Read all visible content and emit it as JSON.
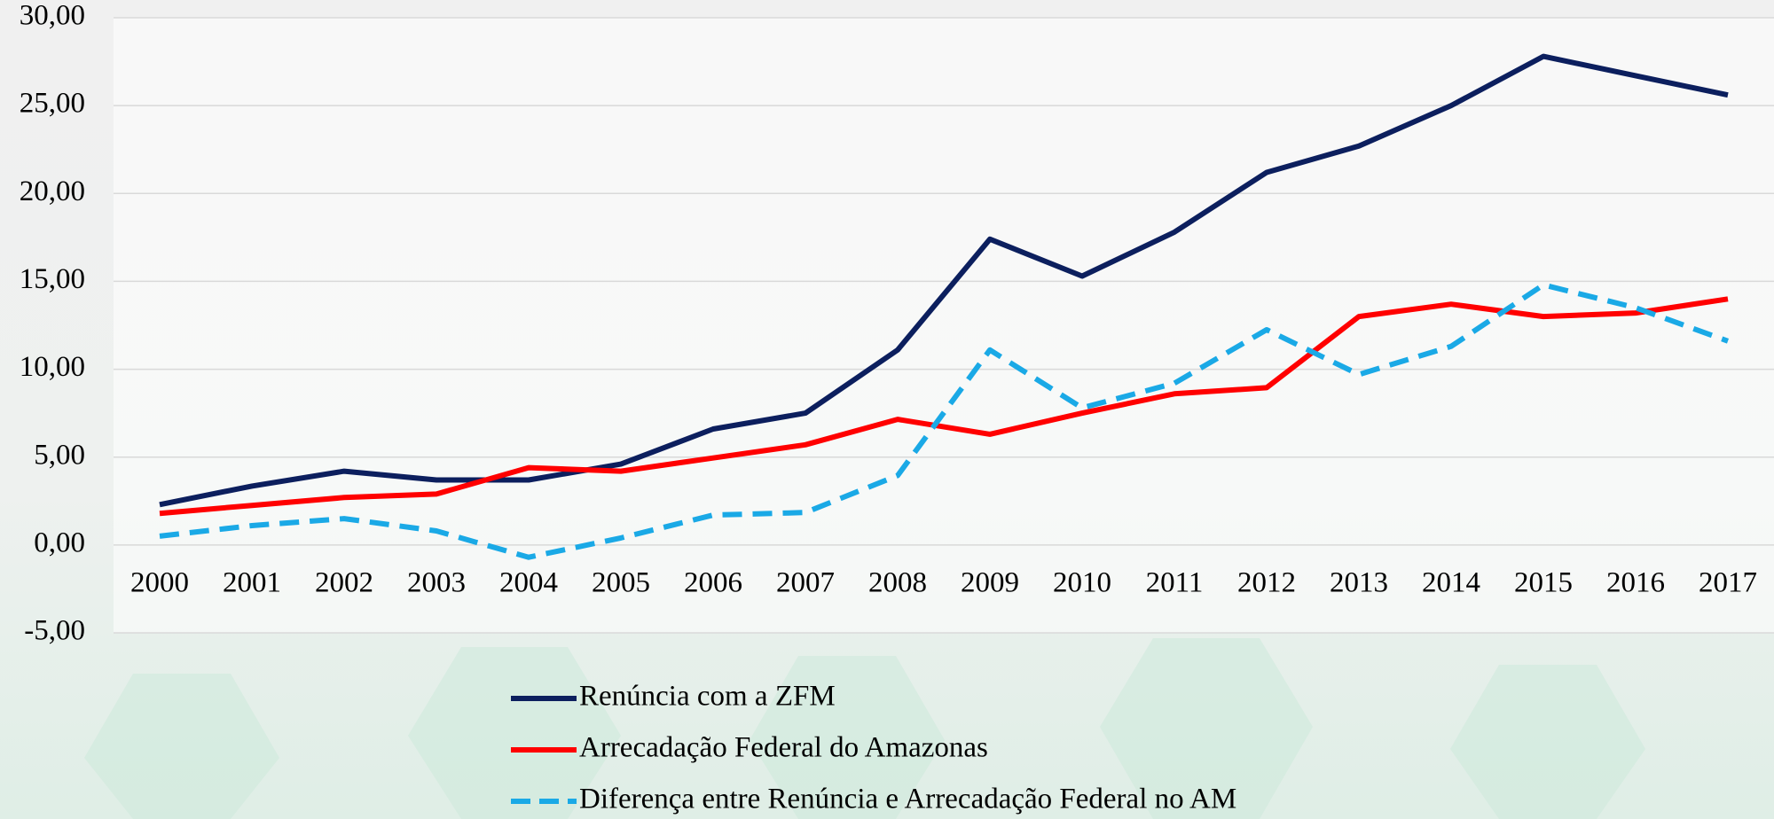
{
  "chart_data": {
    "type": "line",
    "categories": [
      "2000",
      "2001",
      "2002",
      "2003",
      "2004",
      "2005",
      "2006",
      "2007",
      "2008",
      "2009",
      "2010",
      "2011",
      "2012",
      "2013",
      "2014",
      "2015",
      "2016",
      "2017"
    ],
    "series": [
      {
        "name": "Renúncia com a ZFM",
        "color": "#0c1f5e",
        "values": [
          2.3,
          3.35,
          4.2,
          3.7,
          3.7,
          4.6,
          6.6,
          7.5,
          11.1,
          17.4,
          15.3,
          17.8,
          21.2,
          22.7,
          25.0,
          27.8,
          26.7,
          25.6
        ]
      },
      {
        "name": "Arrecadação Federal  do Amazonas",
        "color": "#ff0000",
        "values": [
          1.8,
          2.25,
          2.7,
          2.9,
          4.4,
          4.2,
          4.95,
          5.7,
          7.15,
          6.3,
          7.5,
          8.6,
          8.95,
          13.0,
          13.7,
          13.0,
          13.2,
          14.0
        ]
      },
      {
        "name": "Diferença entre Renúncia e Arrecadação Federal no AM",
        "color": "#1aa9e6",
        "dashed": true,
        "values": [
          0.5,
          1.1,
          1.5,
          0.8,
          -0.7,
          0.4,
          1.7,
          1.85,
          3.95,
          11.1,
          7.8,
          9.2,
          12.25,
          9.7,
          11.3,
          14.8,
          13.5,
          11.6
        ]
      }
    ],
    "ylim": [
      -5,
      30
    ],
    "yticks": [
      {
        "value": -5,
        "label": "-5,00"
      },
      {
        "value": 0,
        "label": "0,00"
      },
      {
        "value": 5,
        "label": "5,00"
      },
      {
        "value": 10,
        "label": "10,00"
      },
      {
        "value": 15,
        "label": "15,00"
      },
      {
        "value": 20,
        "label": "20,00"
      },
      {
        "value": 25,
        "label": "25,00"
      },
      {
        "value": 30,
        "label": "30,00"
      }
    ],
    "grid": true,
    "legend": "bottom"
  }
}
